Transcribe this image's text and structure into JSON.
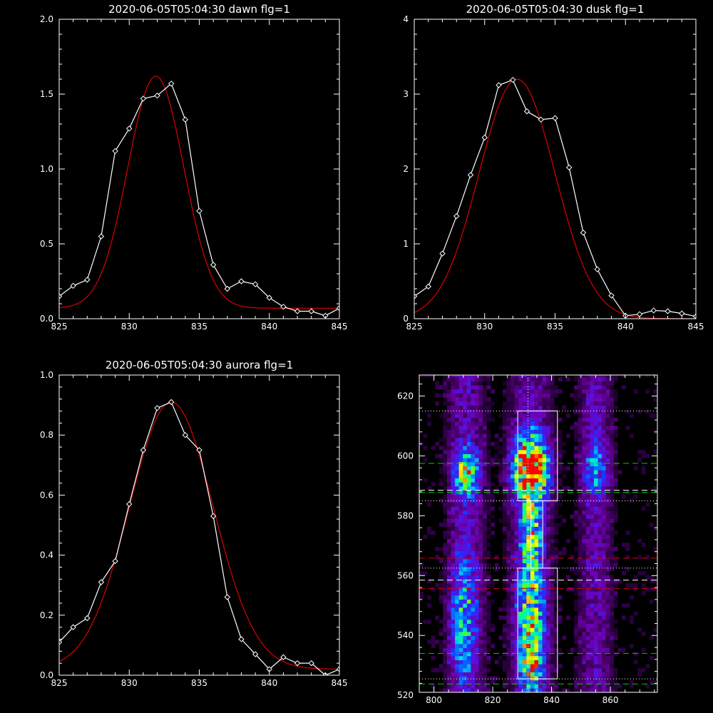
{
  "chart_data": [
    {
      "id": "dawn",
      "type": "line",
      "title": "2020-06-05T05:04:30 dawn flg=1",
      "xlim": [
        825,
        845
      ],
      "ylim": [
        0,
        2.0
      ],
      "xticks": [
        825,
        830,
        835,
        840,
        845
      ],
      "yticks": [
        0.0,
        0.5,
        1.0,
        1.5,
        2.0
      ],
      "ytick_labels": [
        "0.0",
        "0.5",
        "1.0",
        "1.5",
        "2.0"
      ],
      "series": [
        {
          "kind": "measured",
          "color": "#ffffff",
          "marker": "diamond",
          "x": [
            825,
            826,
            827,
            828,
            829,
            830,
            831,
            832,
            833,
            834,
            835,
            836,
            837,
            838,
            839,
            840,
            841,
            842,
            843,
            844,
            845
          ],
          "y": [
            0.15,
            0.22,
            0.26,
            0.55,
            1.12,
            1.27,
            1.47,
            1.49,
            1.57,
            1.33,
            0.72,
            0.36,
            0.2,
            0.25,
            0.23,
            0.14,
            0.08,
            0.05,
            0.05,
            0.02,
            0.07
          ]
        },
        {
          "kind": "fit",
          "color": "#dd0000",
          "gaussian": {
            "amplitude": 1.55,
            "center": 831.9,
            "sigma": 2.0,
            "offset": 0.07
          }
        }
      ]
    },
    {
      "id": "dusk",
      "type": "line",
      "title": "2020-06-05T05:04:30 dusk flg=1",
      "xlim": [
        825,
        845
      ],
      "ylim": [
        0,
        4
      ],
      "xticks": [
        825,
        830,
        835,
        840,
        845
      ],
      "yticks": [
        0,
        1,
        2,
        3,
        4
      ],
      "ytick_labels": [
        "0",
        "1",
        "2",
        "3",
        "4"
      ],
      "series": [
        {
          "kind": "measured",
          "color": "#ffffff",
          "marker": "diamond",
          "x": [
            825,
            826,
            827,
            828,
            829,
            830,
            831,
            832,
            833,
            834,
            835,
            836,
            837,
            838,
            839,
            840,
            841,
            842,
            843,
            844,
            845
          ],
          "y": [
            0.3,
            0.43,
            0.87,
            1.37,
            1.92,
            2.42,
            3.12,
            3.19,
            2.77,
            2.66,
            2.68,
            2.02,
            1.15,
            0.66,
            0.31,
            0.04,
            0.06,
            0.11,
            0.1,
            0.07,
            0.03
          ]
        },
        {
          "kind": "fit",
          "color": "#dd0000",
          "gaussian": {
            "amplitude": 3.2,
            "center": 832.3,
            "sigma": 2.7,
            "offset": 0.0
          }
        }
      ]
    },
    {
      "id": "aurora",
      "type": "line",
      "title": "2020-06-05T05:04:30 aurora flg=1",
      "xlim": [
        825,
        845
      ],
      "ylim": [
        0,
        1.0
      ],
      "xticks": [
        825,
        830,
        835,
        840,
        845
      ],
      "yticks": [
        0.0,
        0.2,
        0.4,
        0.6,
        0.8,
        1.0
      ],
      "ytick_labels": [
        "0.0",
        "0.2",
        "0.4",
        "0.6",
        "0.8",
        "1.0"
      ],
      "series": [
        {
          "kind": "measured",
          "color": "#ffffff",
          "marker": "diamond",
          "x": [
            825,
            826,
            827,
            828,
            829,
            830,
            831,
            832,
            833,
            834,
            835,
            836,
            837,
            838,
            839,
            840,
            841,
            842,
            843,
            844,
            845
          ],
          "y": [
            0.11,
            0.16,
            0.19,
            0.31,
            0.38,
            0.57,
            0.75,
            0.89,
            0.91,
            0.8,
            0.75,
            0.53,
            0.26,
            0.12,
            0.07,
            0.02,
            0.06,
            0.04,
            0.04,
            0.0,
            0.02
          ]
        },
        {
          "kind": "fit",
          "color": "#dd0000",
          "gaussian": {
            "amplitude": 0.89,
            "center": 833.0,
            "sigma": 3.0,
            "offset": 0.02
          }
        }
      ]
    },
    {
      "id": "image",
      "type": "heatmap",
      "xlim": [
        795,
        876
      ],
      "ylim": [
        521,
        627
      ],
      "xticks": [
        800,
        820,
        840,
        860
      ],
      "yticks": [
        520,
        540,
        560,
        580,
        600,
        620
      ],
      "colormap": "rainbow",
      "columns": [
        {
          "x": 811,
          "width": 4.5
        },
        {
          "x": 833,
          "width": 5.0
        },
        {
          "x": 855,
          "width": 4.0
        }
      ],
      "blobs": [
        {
          "x": 811,
          "y": 594,
          "sx": 2.8,
          "sy": 5.5,
          "a": 0.55
        },
        {
          "x": 810,
          "y": 545,
          "sx": 3.0,
          "sy": 14,
          "a": 0.38
        },
        {
          "x": 833,
          "y": 596,
          "sx": 4.0,
          "sy": 7,
          "a": 1.0
        },
        {
          "x": 833,
          "y": 575,
          "sx": 2.5,
          "sy": 8,
          "a": 0.42
        },
        {
          "x": 833,
          "y": 545,
          "sx": 3.2,
          "sy": 16,
          "a": 0.55
        },
        {
          "x": 833,
          "y": 530,
          "sx": 2.5,
          "sy": 4,
          "a": 0.35
        },
        {
          "x": 855,
          "y": 596,
          "sx": 3.0,
          "sy": 6,
          "a": 0.28
        }
      ],
      "hlines": [
        {
          "y": 615,
          "color": "#ffffff",
          "style": "dotted"
        },
        {
          "y": 597.5,
          "color": "#00cc00",
          "style": "dashed"
        },
        {
          "y": 588.5,
          "color": "#ffffff",
          "style": "dashed"
        },
        {
          "y": 587.8,
          "color": "#00cc00",
          "style": "dashed"
        },
        {
          "y": 585,
          "color": "#ffffff",
          "style": "dotted"
        },
        {
          "y": 565.8,
          "color": "#dd0000",
          "style": "dashed"
        },
        {
          "y": 562.5,
          "color": "#ffffff",
          "style": "dotted"
        },
        {
          "y": 558.5,
          "color": "#ffffff",
          "style": "dashed"
        },
        {
          "y": 555.7,
          "color": "#dd0000",
          "style": "dashed"
        },
        {
          "y": 534,
          "color": "#00cc00",
          "style": "dashed"
        },
        {
          "y": 525.5,
          "color": "#ffffff",
          "style": "dotted"
        },
        {
          "y": 523.8,
          "color": "#00cc00",
          "style": "dashed"
        }
      ],
      "vlines": [
        {
          "x": 832,
          "color": "#ffffff",
          "style": "dotted"
        }
      ],
      "boxes": [
        {
          "x0": 828.5,
          "x1": 842,
          "y0": 585,
          "y1": 615
        },
        {
          "x0": 828.5,
          "x1": 842,
          "y0": 525.5,
          "y1": 562.5
        },
        {
          "x0": 833,
          "x1": 837,
          "y0": 562.5,
          "y1": 585
        }
      ]
    }
  ]
}
